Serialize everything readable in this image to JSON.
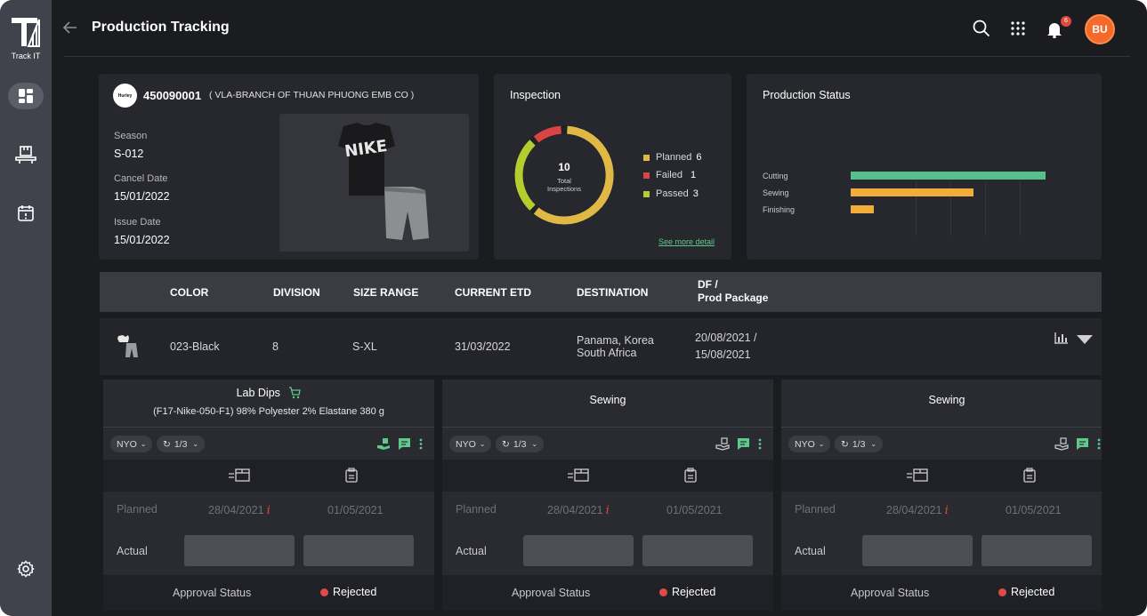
{
  "app": {
    "logo_text": "Track IT",
    "page_title": "Production Tracking",
    "notification_count": "6",
    "avatar_initials": "BU"
  },
  "po": {
    "brand": "Hurley",
    "number": "450090001",
    "vendor": "( VLA-BRANCH OF THUAN PHUONG EMB CO )",
    "season_label": "Season",
    "season": "S-012",
    "cancel_label": "Cancel Date",
    "cancel_date": "15/01/2022",
    "issue_label": "Issue Date",
    "issue_date": "15/01/2022"
  },
  "inspection": {
    "title": "Inspection",
    "total": "10",
    "total_label": "Total Inspections",
    "legend": [
      {
        "label": "Planned",
        "value": "6",
        "color": "#e0b845"
      },
      {
        "label": "Failed",
        "value": "1",
        "color": "#d94545"
      },
      {
        "label": "Passed",
        "value": "3",
        "color": "#b5cc2e"
      }
    ],
    "see_more": "See more detail"
  },
  "production_status": {
    "title": "Production Status",
    "bars": [
      {
        "label": "Cutting",
        "value": 100,
        "color": "#56c08c"
      },
      {
        "label": "Sewing",
        "value": 63,
        "color": "#f0ad3c"
      },
      {
        "label": "Finishing",
        "value": 12,
        "color": "#f0ad3c"
      }
    ]
  },
  "table": {
    "headers": {
      "color": "COLOR",
      "division": "DIVISION",
      "size_range": "SIZE RANGE",
      "current_etd": "CURRENT ETD",
      "destination": "DESTINATION",
      "df_line1": "DF /",
      "df_line2": "Prod Package"
    },
    "row": {
      "color": "023-Black",
      "division": "8",
      "size_range": "S-XL",
      "current_etd": "31/03/2022",
      "destination_line1": "Panama, Korea",
      "destination_line2": "South Africa",
      "df_line1": "20/08/2021 /",
      "df_line2": "15/08/2021"
    }
  },
  "stages": [
    {
      "title": "Lab Dips",
      "subtitle": "(F17-Nike-050-F1) 98% Polyester 2% Elastane 380 g",
      "nyo": "NYO",
      "round": "1/3",
      "planned_label": "Planned",
      "planned_start": "28/04/2021",
      "planned_end": "01/05/2021",
      "actual_label": "Actual",
      "approval_label": "Approval Status",
      "approval_status": "Rejected"
    },
    {
      "title": "Sewing",
      "subtitle": "",
      "nyo": "NYO",
      "round": "1/3",
      "planned_label": "Planned",
      "planned_start": "28/04/2021",
      "planned_end": "01/05/2021",
      "actual_label": "Actual",
      "approval_label": "Approval Status",
      "approval_status": "Rejected"
    },
    {
      "title": "Sewing",
      "subtitle": "",
      "nyo": "NYO",
      "round": "1/3",
      "planned_label": "Planned",
      "planned_start": "28/04/2021",
      "planned_end": "01/05/2021",
      "actual_label": "Actual",
      "approval_label": "Approval Status",
      "approval_status": "Rejected"
    }
  ]
}
